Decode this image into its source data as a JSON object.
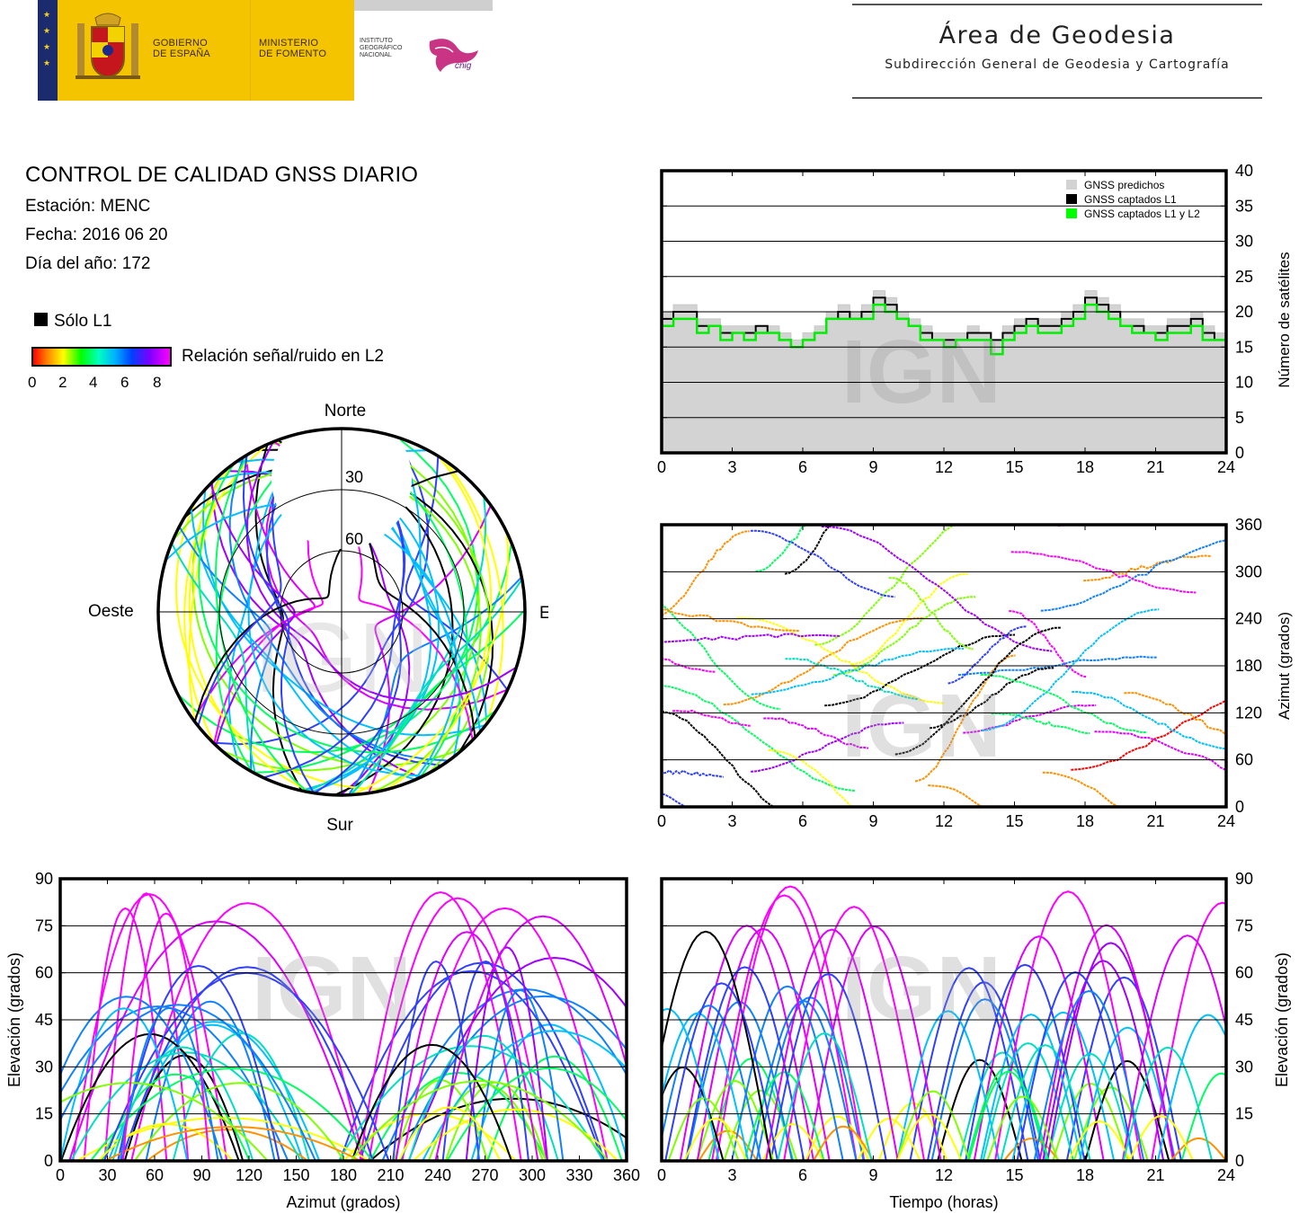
{
  "header": {
    "gob_line1": "GOBIERNO",
    "gob_line2": "DE ESPAÑA",
    "min_line1": "MINISTERIO",
    "min_line2": "DE FOMENTO",
    "ign_line1": "INSTITUTO",
    "ign_line2": "GEOGRÁFICO",
    "ign_line3": "NACIONAL",
    "ign_logo_text": "cnig",
    "area_title": "Área de Geodesia",
    "area_subtitle": "Subdirección General de Geodesia y Cartografía"
  },
  "report": {
    "title": "CONTROL DE CALIDAD GNSS DIARIO",
    "station": "Estación: MENC",
    "date": "Fecha: 2016 06 20",
    "doy": "Día del año: 172"
  },
  "legend": {
    "l1_only": "Sólo L1",
    "snr_label": "Relación señal/ruido en L2",
    "snr_ticks": [
      "0",
      "2",
      "4",
      "6",
      "8"
    ],
    "colors": {
      "l1_only": "#000000",
      "predicted": "#d3d3d3",
      "captured_l1": "#000000",
      "captured_l1_l2": "#00ff00"
    }
  },
  "watermark": "IGN",
  "chart_data": [
    {
      "id": "skyplot",
      "type": "scatter",
      "projection": "polar",
      "compass": {
        "north": "Norte",
        "south": "Sur",
        "west": "Oeste",
        "east": "Este"
      },
      "rings": [
        "30",
        "60"
      ],
      "color_scale": "SNR L2 0–8"
    },
    {
      "id": "satellites",
      "type": "area",
      "xlabel": "",
      "ylabel": "Número de satélites",
      "xlim": [
        0,
        24
      ],
      "ylim": [
        0,
        40
      ],
      "x_ticks": [
        "0",
        "3",
        "6",
        "9",
        "12",
        "15",
        "18",
        "21",
        "24"
      ],
      "y_ticks": [
        "0",
        "5",
        "10",
        "15",
        "20",
        "25",
        "30",
        "35",
        "40"
      ],
      "legend": [
        "GNSS predichos",
        "GNSS captados L1",
        "GNSS captados L1 y L2"
      ],
      "legend_position": "top-right",
      "x": [
        0,
        0.5,
        1,
        1.5,
        2,
        2.5,
        3,
        3.5,
        4,
        4.5,
        5,
        5.5,
        6,
        6.5,
        7,
        7.5,
        8,
        8.5,
        9,
        9.5,
        10,
        10.5,
        11,
        11.5,
        12,
        12.5,
        13,
        13.5,
        14,
        14.5,
        15,
        15.5,
        16,
        16.5,
        17,
        17.5,
        18,
        18.5,
        19,
        19.5,
        20,
        20.5,
        21,
        21.5,
        22,
        22.5,
        23,
        23.5,
        24
      ],
      "series": [
        {
          "name": "GNSS predichos",
          "values": [
            20,
            21,
            21,
            19,
            19,
            18,
            18,
            18,
            18,
            18,
            17,
            16,
            17,
            18,
            20,
            21,
            20,
            21,
            23,
            22,
            20,
            19,
            18,
            17,
            17,
            17,
            18,
            17,
            16,
            18,
            19,
            19,
            19,
            19,
            20,
            21,
            23,
            22,
            21,
            19,
            19,
            18,
            18,
            19,
            19,
            20,
            18,
            17,
            19
          ]
        },
        {
          "name": "GNSS captados L1",
          "values": [
            19,
            20,
            20,
            18,
            18,
            17,
            17,
            17,
            18,
            17,
            16,
            15,
            16,
            17,
            19,
            20,
            19,
            20,
            22,
            21,
            19,
            18,
            17,
            16,
            16,
            16,
            17,
            17,
            16,
            17,
            18,
            19,
            18,
            18,
            19,
            20,
            22,
            21,
            20,
            18,
            18,
            17,
            17,
            18,
            18,
            19,
            17,
            16,
            18
          ]
        },
        {
          "name": "GNSS captados L1 y L2",
          "values": [
            18,
            19,
            19,
            17,
            18,
            16,
            17,
            16,
            17,
            17,
            16,
            15,
            16,
            17,
            19,
            19,
            19,
            19,
            21,
            20,
            19,
            18,
            16,
            16,
            15,
            16,
            16,
            16,
            14,
            16,
            17,
            18,
            17,
            17,
            18,
            19,
            21,
            20,
            19,
            18,
            17,
            17,
            16,
            17,
            17,
            18,
            16,
            16,
            17
          ]
        }
      ]
    },
    {
      "id": "azimuth_time",
      "type": "scatter",
      "xlabel": "",
      "ylabel": "Azimut (grados)",
      "xlim": [
        0,
        24
      ],
      "ylim": [
        0,
        360
      ],
      "x_ticks": [
        "0",
        "3",
        "6",
        "9",
        "12",
        "15",
        "18",
        "21",
        "24"
      ],
      "y_ticks": [
        "0",
        "60",
        "120",
        "180",
        "240",
        "300",
        "360"
      ]
    },
    {
      "id": "elevation_azimuth",
      "type": "scatter",
      "xlabel": "Azimut (grados)",
      "ylabel": "Elevación (grados)",
      "xlim": [
        0,
        360
      ],
      "ylim": [
        0,
        90
      ],
      "x_ticks": [
        "0",
        "30",
        "60",
        "90",
        "120",
        "150",
        "180",
        "210",
        "240",
        "270",
        "300",
        "330",
        "360"
      ],
      "y_ticks": [
        "0",
        "15",
        "30",
        "45",
        "60",
        "75",
        "90"
      ]
    },
    {
      "id": "elevation_time",
      "type": "scatter",
      "xlabel": "Tiempo (horas)",
      "ylabel": "Elevación (grados)",
      "xlim": [
        0,
        24
      ],
      "ylim": [
        0,
        90
      ],
      "x_ticks": [
        "0",
        "3",
        "6",
        "9",
        "12",
        "15",
        "18",
        "21",
        "24"
      ],
      "y_ticks": [
        "0",
        "15",
        "30",
        "45",
        "60",
        "75",
        "90"
      ]
    }
  ]
}
